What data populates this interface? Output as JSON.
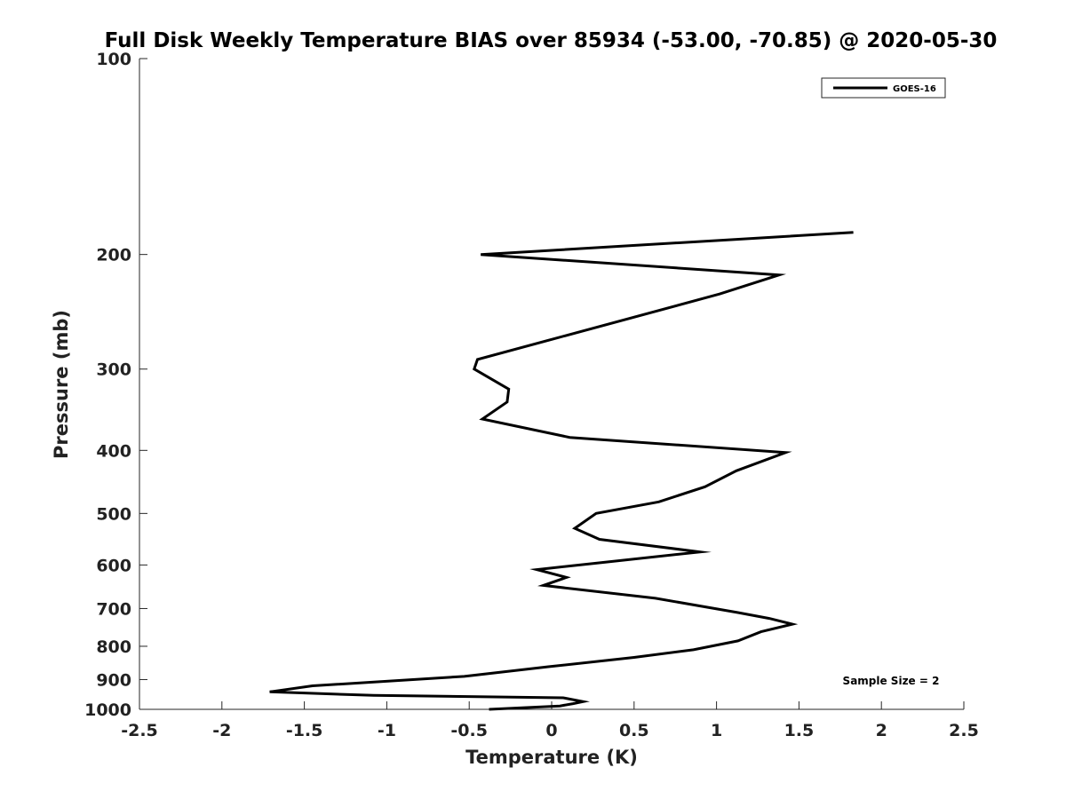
{
  "chart_data": {
    "type": "line",
    "title": "Full Disk Weekly Temperature BIAS over 85934 (-53.00, -70.85) @ 2020-05-30",
    "xlabel": "Temperature (K)",
    "ylabel": "Pressure (mb)",
    "xlim": [
      -2.5,
      2.5
    ],
    "ylim": [
      100,
      1000
    ],
    "y_scale": "log",
    "y_reversed": true,
    "x_ticks": [
      "-2.5",
      "-2",
      "-1.5",
      "-1",
      "-0.5",
      "0",
      "0.5",
      "1",
      "1.5",
      "2",
      "2.5"
    ],
    "y_ticks": [
      "100",
      "200",
      "300",
      "400",
      "500",
      "600",
      "700",
      "800",
      "900",
      "1000"
    ],
    "grid": false,
    "legend_position": "top-right",
    "annotation": "Sample Size = 2",
    "series": [
      {
        "name": "GOES-16",
        "color": "#000000",
        "x": [
          1.83,
          -0.43,
          1.38,
          1.02,
          -0.45,
          -0.47,
          -0.26,
          -0.27,
          -0.42,
          0.11,
          1.42,
          1.12,
          0.93,
          0.65,
          0.27,
          0.14,
          0.29,
          0.9,
          0.3,
          -0.09,
          0.09,
          -0.05,
          0.63,
          1.13,
          1.32,
          1.46,
          1.27,
          1.13,
          0.86,
          0.5,
          -0.02,
          -0.53,
          -1.45,
          -1.71,
          -1.08,
          0.07,
          0.19,
          0.13,
          0.05,
          -0.38
        ],
        "y": [
          185,
          200,
          215,
          230,
          290,
          300,
          322,
          337,
          358,
          382,
          403,
          430,
          455,
          480,
          500,
          527,
          548,
          573,
          595,
          610,
          627,
          645,
          675,
          710,
          725,
          740,
          760,
          785,
          810,
          832,
          860,
          890,
          920,
          940,
          952,
          960,
          973,
          980,
          988,
          1000
        ]
      }
    ]
  }
}
